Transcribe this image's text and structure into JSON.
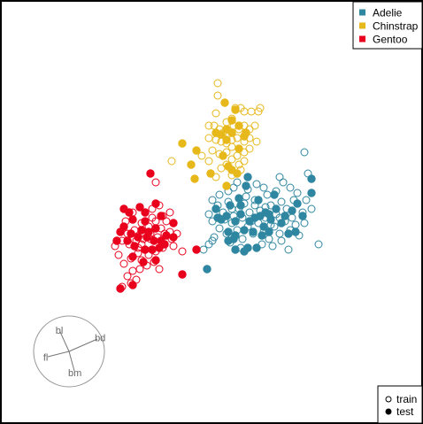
{
  "chart_data": {
    "type": "scatter",
    "axes_visible": false,
    "grid": false,
    "legend_species": {
      "placement": "top-right",
      "items": [
        {
          "label": "Adelie",
          "color": "#2e86a0"
        },
        {
          "label": "Chinstrap",
          "color": "#e6b81a"
        },
        {
          "label": "Gentoo",
          "color": "#e8001c"
        }
      ]
    },
    "legend_split": {
      "placement": "bottom-right",
      "items": [
        {
          "label": "train",
          "marker": "open-circle"
        },
        {
          "label": "test",
          "marker": "filled-circle"
        }
      ]
    },
    "axes_guide": {
      "placement": "bottom-left",
      "variables": [
        {
          "label": "bl",
          "dx": -0.25,
          "dy": -0.55
        },
        {
          "label": "bd",
          "dx": 0.8,
          "dy": -0.35
        },
        {
          "label": "fl",
          "dx": -0.6,
          "dy": 0.15
        },
        {
          "label": "bm",
          "dx": 0.15,
          "dy": 0.55
        }
      ]
    },
    "series": [
      {
        "name": "Adelie",
        "color": "#2e86a0",
        "train": [
          [
            246,
            232
          ],
          [
            252,
            240
          ],
          [
            258,
            228
          ],
          [
            264,
            244
          ],
          [
            270,
            236
          ],
          [
            276,
            230
          ],
          [
            282,
            240
          ],
          [
            288,
            226
          ],
          [
            294,
            238
          ],
          [
            300,
            246
          ],
          [
            306,
            232
          ],
          [
            312,
            242
          ],
          [
            318,
            228
          ],
          [
            324,
            236
          ],
          [
            330,
            246
          ],
          [
            240,
            250
          ],
          [
            248,
            258
          ],
          [
            256,
            264
          ],
          [
            262,
            252
          ],
          [
            268,
            260
          ],
          [
            274,
            270
          ],
          [
            280,
            256
          ],
          [
            286,
            264
          ],
          [
            292,
            252
          ],
          [
            298,
            262
          ],
          [
            304,
            270
          ],
          [
            310,
            256
          ],
          [
            316,
            264
          ],
          [
            322,
            250
          ],
          [
            328,
            260
          ],
          [
            334,
            254
          ],
          [
            342,
            240
          ],
          [
            346,
            226
          ],
          [
            352,
            236
          ],
          [
            336,
            218
          ],
          [
            328,
            212
          ],
          [
            320,
            206
          ],
          [
            312,
            216
          ],
          [
            298,
            212
          ],
          [
            290,
            208
          ],
          [
            280,
            214
          ],
          [
            268,
            206
          ],
          [
            258,
            216
          ],
          [
            248,
            220
          ],
          [
            240,
            226
          ],
          [
            236,
            242
          ],
          [
            242,
            268
          ],
          [
            236,
            276
          ],
          [
            230,
            282
          ],
          [
            260,
            274
          ],
          [
            272,
            280
          ],
          [
            296,
            276
          ],
          [
            308,
            278
          ],
          [
            318,
            272
          ],
          [
            326,
            282
          ],
          [
            338,
            266
          ],
          [
            344,
            252
          ],
          [
            360,
            276
          ],
          [
            348,
            196
          ],
          [
            344,
            172
          ],
          [
            302,
            220
          ],
          [
            316,
            246
          ],
          [
            284,
            250
          ],
          [
            278,
            222
          ],
          [
            262,
            236
          ],
          [
            254,
            248
          ],
          [
            274,
            246
          ],
          [
            288,
            232
          ],
          [
            300,
            234
          ],
          [
            264,
            212
          ],
          [
            240,
            272
          ],
          [
            316,
            200
          ],
          [
            332,
            226
          ],
          [
            306,
            254
          ]
        ],
        "test": [
          [
            244,
            236
          ],
          [
            250,
            248
          ],
          [
            256,
            244
          ],
          [
            260,
            232
          ],
          [
            266,
            250
          ],
          [
            272,
            242
          ],
          [
            276,
            260
          ],
          [
            282,
            250
          ],
          [
            288,
            246
          ],
          [
            294,
            244
          ],
          [
            300,
            240
          ],
          [
            306,
            248
          ],
          [
            312,
            236
          ],
          [
            318,
            252
          ],
          [
            258,
            262
          ],
          [
            266,
            266
          ],
          [
            286,
            262
          ],
          [
            296,
            266
          ],
          [
            304,
            242
          ],
          [
            272,
            232
          ],
          [
            310,
            220
          ],
          [
            322,
            244
          ],
          [
            330,
            238
          ],
          [
            336,
            230
          ],
          [
            342,
            244
          ],
          [
            352,
            218
          ],
          [
            352,
            202
          ],
          [
            334,
            262
          ],
          [
            326,
            264
          ],
          [
            304,
            262
          ],
          [
            290,
            280
          ],
          [
            280,
            280
          ],
          [
            266,
            282
          ],
          [
            276,
            284
          ],
          [
            264,
            270
          ],
          [
            258,
            272
          ],
          [
            280,
            200
          ],
          [
            278,
            210
          ],
          [
            246,
            246
          ],
          [
            234,
            304
          ],
          [
            270,
            224
          ],
          [
            292,
            226
          ],
          [
            298,
            256
          ]
        ]
      },
      {
        "name": "Chinstrap",
        "color": "#e6b81a",
        "train": [
          [
            246,
            94
          ],
          [
            246,
            108
          ],
          [
            266,
            122
          ],
          [
            272,
            122
          ],
          [
            276,
            126
          ],
          [
            284,
            126
          ],
          [
            294,
            122
          ],
          [
            292,
            126
          ],
          [
            244,
            128
          ],
          [
            262,
            134
          ],
          [
            236,
            142
          ],
          [
            242,
            142
          ],
          [
            248,
            146
          ],
          [
            252,
            150
          ],
          [
            256,
            138
          ],
          [
            264,
            142
          ],
          [
            270,
            146
          ],
          [
            276,
            142
          ],
          [
            282,
            146
          ],
          [
            288,
            142
          ],
          [
            236,
            156
          ],
          [
            244,
            158
          ],
          [
            250,
            160
          ],
          [
            256,
            162
          ],
          [
            262,
            166
          ],
          [
            268,
            156
          ],
          [
            276,
            160
          ],
          [
            282,
            156
          ],
          [
            290,
            160
          ],
          [
            240,
            170
          ],
          [
            248,
            174
          ],
          [
            256,
            172
          ],
          [
            262,
            180
          ],
          [
            268,
            176
          ],
          [
            276,
            172
          ],
          [
            282,
            168
          ],
          [
            228,
            176
          ],
          [
            272,
            192
          ],
          [
            262,
            198
          ],
          [
            194,
            182
          ],
          [
            236,
            182
          ],
          [
            250,
            190
          ],
          [
            244,
            200
          ],
          [
            256,
            186
          ],
          [
            270,
            186
          ],
          [
            276,
            182
          ],
          [
            262,
            158
          ]
        ],
        "test": [
          [
            254,
            116
          ],
          [
            262,
            136
          ],
          [
            270,
            142
          ],
          [
            278,
            150
          ],
          [
            256,
            146
          ],
          [
            250,
            152
          ],
          [
            244,
            150
          ],
          [
            262,
            150
          ],
          [
            270,
            168
          ],
          [
            256,
            158
          ],
          [
            252,
            176
          ],
          [
            258,
            188
          ],
          [
            262,
            192
          ],
          [
            268,
            196
          ],
          [
            256,
            210
          ],
          [
            238,
            196
          ],
          [
            220,
            202
          ],
          [
            216,
            186
          ],
          [
            222,
            170
          ],
          [
            206,
            162
          ],
          [
            266,
            124
          ],
          [
            276,
            154
          ]
        ]
      },
      {
        "name": "Gentoo",
        "color": "#e8001c",
        "train": [
          [
            176,
            206
          ],
          [
            172,
            236
          ],
          [
            180,
            232
          ],
          [
            184,
            244
          ],
          [
            192,
            240
          ],
          [
            176,
            250
          ],
          [
            168,
            256
          ],
          [
            160,
            252
          ],
          [
            152,
            260
          ],
          [
            144,
            264
          ],
          [
            138,
            272
          ],
          [
            130,
            278
          ],
          [
            146,
            276
          ],
          [
            154,
            272
          ],
          [
            162,
            270
          ],
          [
            170,
            264
          ],
          [
            178,
            268
          ],
          [
            186,
            264
          ],
          [
            194,
            270
          ],
          [
            200,
            264
          ],
          [
            164,
            282
          ],
          [
            156,
            286
          ],
          [
            148,
            292
          ],
          [
            140,
            298
          ],
          [
            150,
            306
          ],
          [
            158,
            304
          ],
          [
            166,
            300
          ],
          [
            174,
            296
          ],
          [
            180,
            304
          ],
          [
            168,
            288
          ],
          [
            176,
            284
          ],
          [
            184,
            280
          ],
          [
            138,
            324
          ],
          [
            148,
            320
          ],
          [
            154,
            316
          ],
          [
            160,
            264
          ],
          [
            172,
            246
          ],
          [
            142,
            250
          ],
          [
            150,
            240
          ],
          [
            144,
            312
          ],
          [
            188,
            250
          ],
          [
            134,
            288
          ],
          [
            156,
            280
          ],
          [
            160,
            294
          ],
          [
            182,
            258
          ],
          [
            192,
            262
          ],
          [
            206,
            284
          ],
          [
            196,
            278
          ],
          [
            170,
            270
          ],
          [
            160,
            276
          ]
        ],
        "test": [
          [
            170,
            196
          ],
          [
            158,
            234
          ],
          [
            164,
            240
          ],
          [
            150,
            248
          ],
          [
            140,
            256
          ],
          [
            148,
            264
          ],
          [
            156,
            268
          ],
          [
            166,
            268
          ],
          [
            174,
            272
          ],
          [
            182,
            272
          ],
          [
            188,
            266
          ],
          [
            196,
            268
          ],
          [
            176,
            258
          ],
          [
            160,
            260
          ],
          [
            144,
            272
          ],
          [
            152,
            278
          ],
          [
            164,
            282
          ],
          [
            172,
            282
          ],
          [
            180,
            280
          ],
          [
            136,
            262
          ],
          [
            132,
            272
          ],
          [
            146,
            240
          ],
          [
            140,
            236
          ],
          [
            150,
            290
          ],
          [
            162,
            296
          ],
          [
            176,
            294
          ],
          [
            222,
            282
          ],
          [
            206,
            310
          ],
          [
            150,
            322
          ],
          [
            136,
            326
          ],
          [
            182,
            244
          ],
          [
            196,
            252
          ],
          [
            164,
            250
          ],
          [
            168,
            262
          ],
          [
            186,
            276
          ],
          [
            176,
            230
          ]
        ]
      }
    ]
  }
}
